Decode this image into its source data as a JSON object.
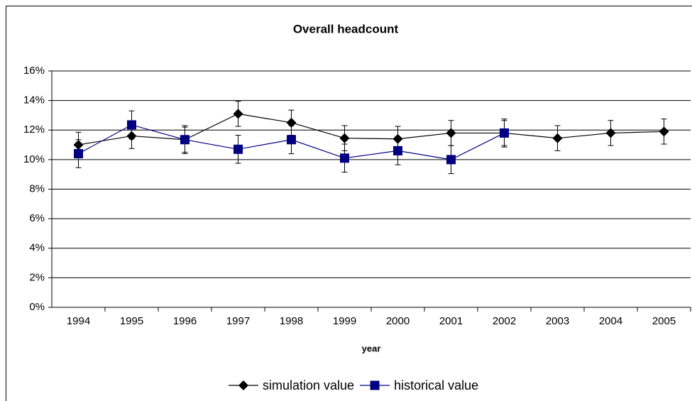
{
  "chart_data": {
    "type": "line",
    "title": "Overall headcount",
    "x_label": "year",
    "categories": [
      "1994",
      "1995",
      "1996",
      "1997",
      "1998",
      "1999",
      "2000",
      "2001",
      "2002",
      "2003",
      "2004",
      "2005"
    ],
    "series": [
      {
        "name": "simulation value",
        "color": "#000000",
        "marker": "diamond",
        "values": [
          11.0,
          11.6,
          11.35,
          13.1,
          12.5,
          11.45,
          11.4,
          11.8,
          11.8,
          11.45,
          11.8,
          11.9
        ],
        "errors": [
          0.85,
          0.85,
          0.85,
          0.85,
          0.85,
          0.85,
          0.85,
          0.85,
          0.85,
          0.85,
          0.85,
          0.85
        ]
      },
      {
        "name": "historical value",
        "color": "#000080",
        "marker": "square",
        "values": [
          10.4,
          12.35,
          11.35,
          10.7,
          11.35,
          10.1,
          10.6,
          10.0,
          11.8,
          null,
          null,
          null
        ],
        "errors": [
          0.95,
          0.95,
          0.95,
          0.95,
          0.95,
          0.95,
          0.95,
          0.95,
          0.95,
          null,
          null,
          null
        ]
      }
    ],
    "ylim": [
      0,
      16
    ],
    "yticks": [
      {
        "value": 0,
        "label": "0%"
      },
      {
        "value": 2,
        "label": "2%"
      },
      {
        "value": 4,
        "label": "4%"
      },
      {
        "value": 6,
        "label": "6%"
      },
      {
        "value": 8,
        "label": "8%"
      },
      {
        "value": 10,
        "label": "10%"
      },
      {
        "value": 12,
        "label": "12%"
      },
      {
        "value": 14,
        "label": "14%"
      },
      {
        "value": 16,
        "label": "16%"
      }
    ],
    "grid": true,
    "legend": "bottom"
  }
}
